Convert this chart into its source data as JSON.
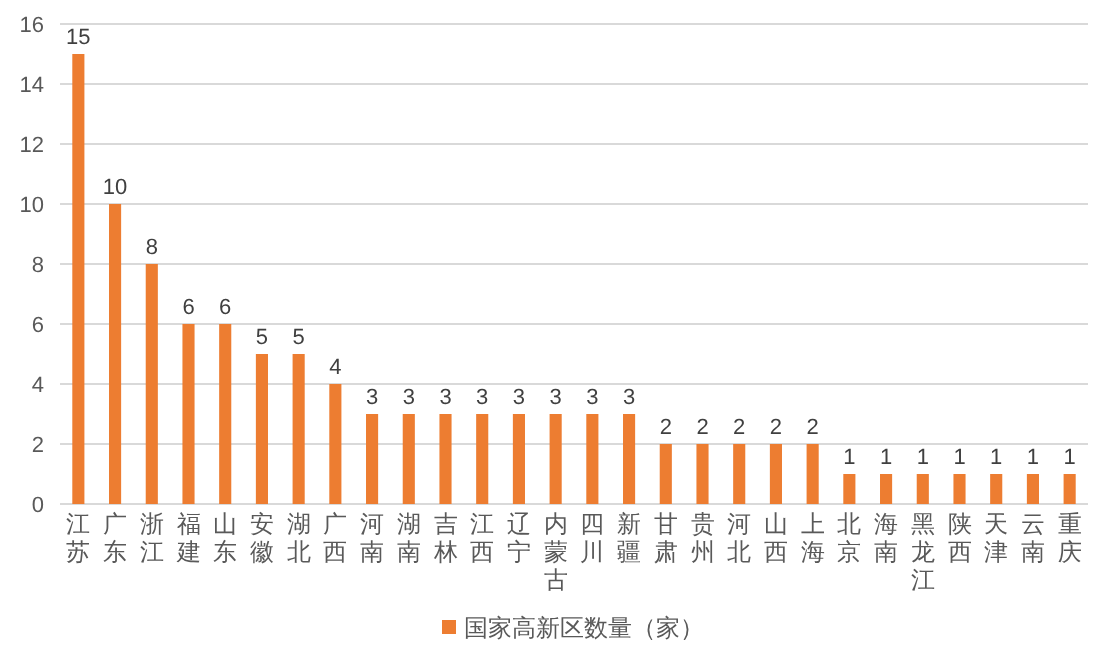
{
  "chart_data": {
    "type": "bar",
    "categories": [
      "江苏",
      "广东",
      "浙江",
      "福建",
      "山东",
      "安徽",
      "湖北",
      "广西",
      "河南",
      "湖南",
      "吉林",
      "江西",
      "辽宁",
      "内蒙古",
      "四川",
      "新疆",
      "甘肃",
      "贵州",
      "河北",
      "山西",
      "上海",
      "北京",
      "海南",
      "黑龙江",
      "陕西",
      "天津",
      "云南",
      "重庆"
    ],
    "series": [
      {
        "name": "国家高新区数量（家）",
        "color": "#ed7d31",
        "values": [
          15,
          10,
          8,
          6,
          6,
          5,
          5,
          4,
          3,
          3,
          3,
          3,
          3,
          3,
          3,
          3,
          2,
          2,
          2,
          2,
          2,
          1,
          1,
          1,
          1,
          1,
          1,
          1
        ]
      }
    ],
    "ylim": [
      0,
      16
    ],
    "yticks": [
      0,
      2,
      4,
      6,
      8,
      10,
      12,
      14,
      16
    ],
    "grid": "y",
    "legend": "bottom",
    "data_labels": true
  }
}
